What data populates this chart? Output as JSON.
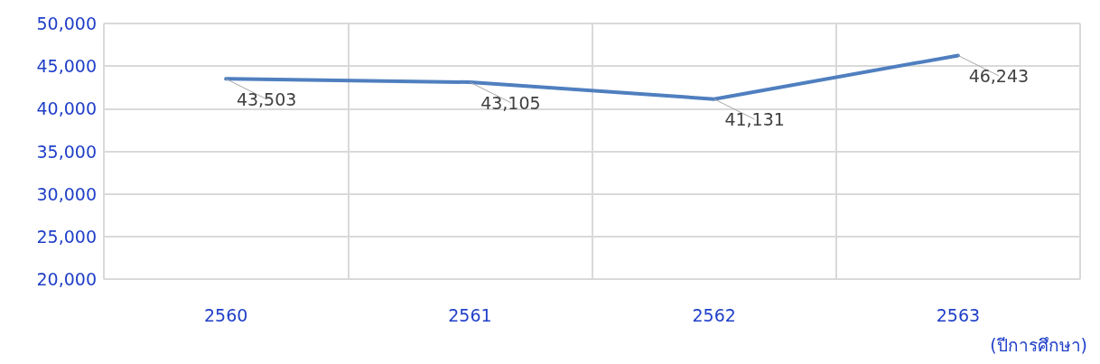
{
  "chart_data": {
    "type": "line",
    "xlabel": "(ปีการศึกษา)",
    "categories": [
      "2560",
      "2561",
      "2562",
      "2563"
    ],
    "series": [
      {
        "color": "#4f7fbf",
        "values": [
          43503,
          43105,
          41131,
          46243
        ],
        "value_labels": [
          "43,503",
          "43,105",
          "41,131",
          "46,243"
        ]
      }
    ],
    "ylim": [
      20000,
      50000
    ],
    "yticks": [
      {
        "value": 20000,
        "label": "20,000"
      },
      {
        "value": 25000,
        "label": "25,000"
      },
      {
        "value": 30000,
        "label": "30,000"
      },
      {
        "value": 35000,
        "label": "35,000"
      },
      {
        "value": 40000,
        "label": "40,000"
      },
      {
        "value": 45000,
        "label": "45,000"
      },
      {
        "value": 50000,
        "label": "50,000"
      }
    ],
    "grid": true,
    "marker": "none",
    "line_style": "solid"
  }
}
